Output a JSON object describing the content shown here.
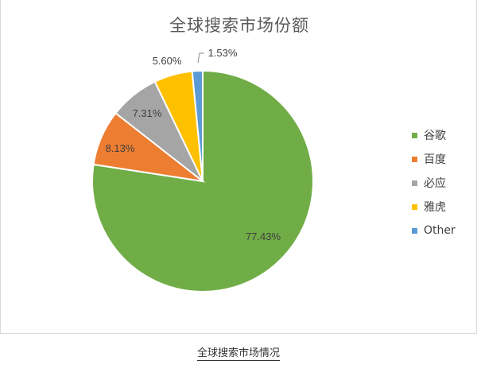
{
  "chart_data": {
    "type": "pie",
    "title": "全球搜索市场份额",
    "categories": [
      "谷歌",
      "百度",
      "必应",
      "雅虎",
      "Other"
    ],
    "values": [
      77.43,
      8.13,
      7.31,
      5.6,
      1.53
    ],
    "value_labels": [
      "77.43%",
      "8.13%",
      "7.31%",
      "5.60%",
      "1.53%"
    ],
    "colors": [
      "#70AD47",
      "#ED7D31",
      "#A5A5A5",
      "#FFC000",
      "#5B9BD5"
    ],
    "start_angle_deg": 0,
    "direction": "clockwise",
    "legend": "right",
    "unit": "%"
  },
  "caption": "全球搜索市场情况"
}
